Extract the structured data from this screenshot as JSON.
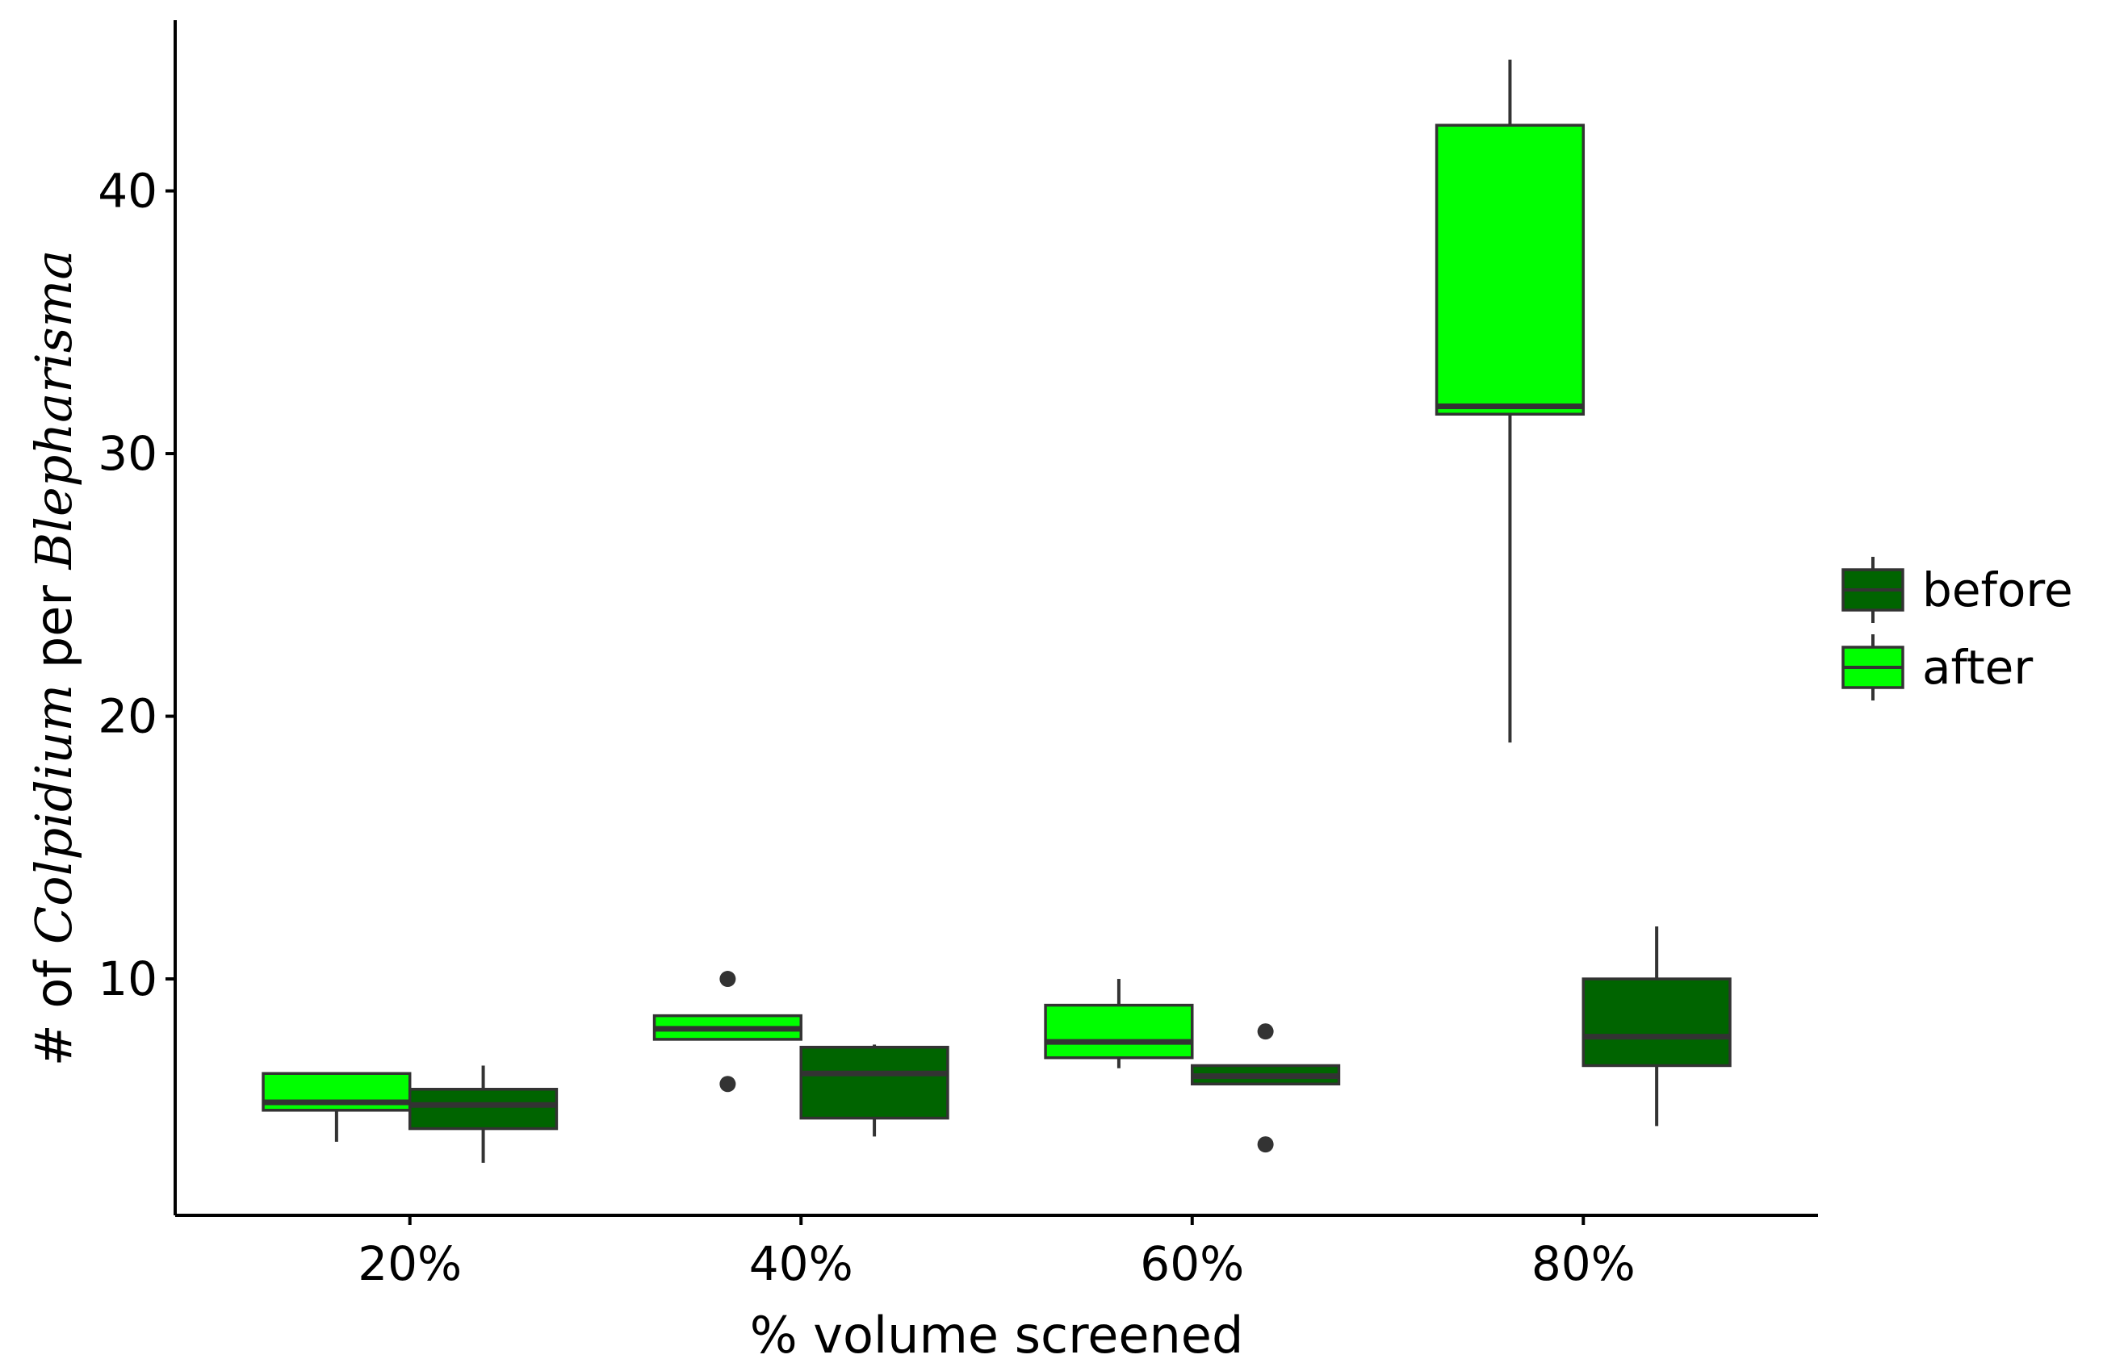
{
  "chart_data": {
    "type": "box",
    "xlabel": "% volume screened",
    "ylabel": {
      "parts": [
        {
          "text": "# of ",
          "italic": false
        },
        {
          "text": "Colpidium",
          "italic": true
        },
        {
          "text": " per ",
          "italic": false
        },
        {
          "text": "Blepharisma",
          "italic": true
        }
      ]
    },
    "categories": [
      "20%",
      "40%",
      "60%",
      "80%"
    ],
    "ylim": [
      1,
      46.5
    ],
    "yticks": [
      10,
      20,
      30,
      40
    ],
    "ytick_labels": [
      "10",
      "20",
      "30",
      "40"
    ],
    "grid": false,
    "legend_position": "right",
    "series": [
      {
        "name": "after",
        "color": "#00ff00",
        "boxes": [
          {
            "category": "20%",
            "lower_whisker": 3.8,
            "q1": 5.0,
            "median": 5.3,
            "q3": 6.4,
            "upper_whisker": 6.4,
            "outliers": []
          },
          {
            "category": "40%",
            "lower_whisker": 7.7,
            "q1": 7.7,
            "median": 8.1,
            "q3": 8.6,
            "upper_whisker": 8.6,
            "outliers": [
              10.0,
              6.0
            ]
          },
          {
            "category": "60%",
            "lower_whisker": 6.6,
            "q1": 7.0,
            "median": 7.6,
            "q3": 9.0,
            "upper_whisker": 10.0,
            "outliers": []
          },
          {
            "category": "80%",
            "lower_whisker": 19.0,
            "q1": 31.5,
            "median": 31.8,
            "q3": 42.5,
            "upper_whisker": 45.0,
            "outliers": []
          }
        ]
      },
      {
        "name": "before",
        "color": "#006400",
        "boxes": [
          {
            "category": "20%",
            "lower_whisker": 3.0,
            "q1": 4.3,
            "median": 5.2,
            "q3": 5.8,
            "upper_whisker": 6.7,
            "outliers": []
          },
          {
            "category": "40%",
            "lower_whisker": 4.0,
            "q1": 4.7,
            "median": 6.4,
            "q3": 7.4,
            "upper_whisker": 7.5,
            "outliers": []
          },
          {
            "category": "60%",
            "lower_whisker": 6.0,
            "q1": 6.0,
            "median": 6.3,
            "q3": 6.7,
            "upper_whisker": 6.7,
            "outliers": [
              8.0,
              3.7
            ]
          },
          {
            "category": "80%",
            "lower_whisker": 4.4,
            "q1": 6.7,
            "median": 7.8,
            "q3": 10.0,
            "upper_whisker": 12.0,
            "outliers": []
          }
        ]
      }
    ],
    "legend": [
      {
        "label": "before",
        "color": "#006400"
      },
      {
        "label": "after",
        "color": "#00ff00"
      }
    ],
    "line_color": "#333333",
    "axis_color": "#000000"
  }
}
